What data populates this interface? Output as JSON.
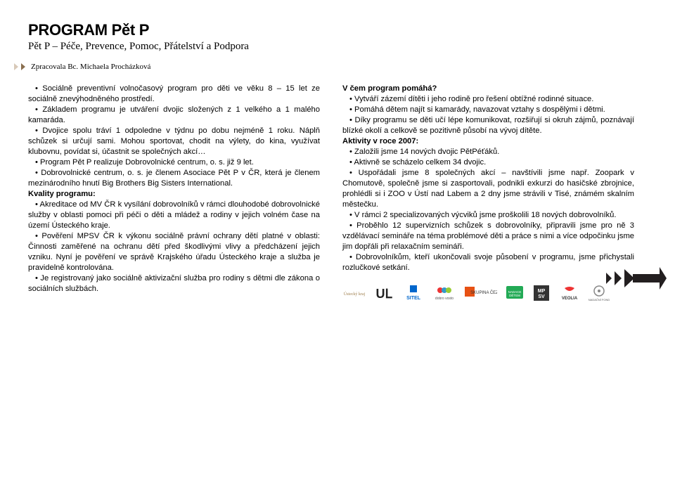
{
  "colors": {
    "arrow_outline": "#231f20",
    "chevron_light": "#d8c9b8",
    "chevron_dark": "#8a6f4f",
    "text": "#000000",
    "background": "#ffffff",
    "logo_gray": "#888888"
  },
  "header": {
    "title": "PROGRAM Pět P",
    "subtitle": "Pět P – Péče, Prevence, Pomoc, Přátelství a Podpora",
    "author": "Zpracovala Bc. Michaela Procházková"
  },
  "left_column": {
    "p1_b1": "•  Sociálně preventivní volnočasový program pro děti ve věku 8 – 15 let ze sociálně znevýhodněného prostředí.",
    "p1_b2": "•  Základem programu je utváření dvojic složených z 1 velkého a 1 malého kamaráda.",
    "p1_b3": "•  Dvojice spolu tráví 1 odpoledne v týdnu po dobu nejméně 1 roku. Náplň schůzek si určují sami. Mohou sportovat, chodit na výlety, do kina, využívat klubovnu, povídat si, účastnit se společných akcí…",
    "p1_b4": "•  Program Pět P realizuje Dobrovolnické centrum, o. s. již 9 let.",
    "p1_b5": "•  Dobrovolnické centrum, o. s. je členem Asociace Pět P v ČR, která je členem mezinárodního hnutí Big Brothers Big Sisters International.",
    "kvality_head": "Kvality programu:",
    "k1": "•  Akreditace od MV ČR k vysílání dobrovolníků v rámci dlouhodobé dobrovolnické služby v oblasti pomoci při péči o děti a mládež a rodiny v jejich volném čase na území Ústeckého kraje.",
    "k2": "•  Pověření MPSV ČR k výkonu sociálně právní ochrany dětí platné v oblasti: Činnosti zaměřené na ochranu dětí před škodlivými vlivy a předcházení jejich vzniku. Nyní je pověření ve správě Krajského úřadu Ústeckého kraje a služba je pravidelně kontrolována.",
    "k3": "•  Je registrovaný jako sociálně aktivizační služba pro rodiny s dětmi dle zákona o sociálních službách."
  },
  "right_column": {
    "help_head": "V čem program pomáhá?",
    "h1": "•  Vytváří zázemí dítěti i jeho rodině pro řešení obtížné rodinné situace.",
    "h2": "•  Pomáhá dětem najít si kamarády, navazovat vztahy s dospělými i dětmi.",
    "h3": "•  Díky programu se děti učí lépe komunikovat, rozšiřují si okruh zájmů, poznávají blízké okolí a celkově se pozitivně působí na vývoj dítěte.",
    "act_head": "Aktivity v roce 2007:",
    "a1": "•  Založili jsme 14 nových dvojic PětPéťáků.",
    "a2": "•  Aktivně se scházelo celkem 34 dvojic.",
    "a3": "•  Uspořádali jsme 8 společných akcí – navštívili jsme např. Zoopark v Chomutově, společně jsme si zasportovali, podnikli exkurzi do hasičské zbrojnice, prohlédli si i ZOO v Ústí nad Labem a 2 dny jsme strávili v Tisé, známém skalním městečku.",
    "a4": "•  V rámci 2 specializovaných výcviků jsme proškolili 18 nových dobrovolníků.",
    "a5": "•  Proběhlo 12 supervizních schůzek s dobrovolníky, připravili jsme pro ně 3 vzdělávací semináře na téma problémové děti a práce s nimi a více odpočinku jsme jim dopřáli při relaxačním semináři.",
    "a6": "•  Dobrovolníkům, kteří ukončovali svoje působení v programu, jsme přichystali rozlučkové setkání."
  },
  "logos": [
    {
      "name": "ustecky-kraj",
      "label": "Ústecký kraj"
    },
    {
      "name": "ul-logo",
      "label": "UL"
    },
    {
      "name": "sitel",
      "label": "SITEL"
    },
    {
      "name": "dobro-vosto",
      "label": "dobro vosto"
    },
    {
      "name": "cez",
      "label": "SKUPINA ČEZ"
    },
    {
      "name": "nadace-detem",
      "label": "NADACE DĚTEM"
    },
    {
      "name": "mpsv",
      "label": "MP SV"
    },
    {
      "name": "veolia",
      "label": "VEOLIA"
    },
    {
      "name": "nadacni-fond",
      "label": "NADAČNÍ FOND"
    }
  ]
}
